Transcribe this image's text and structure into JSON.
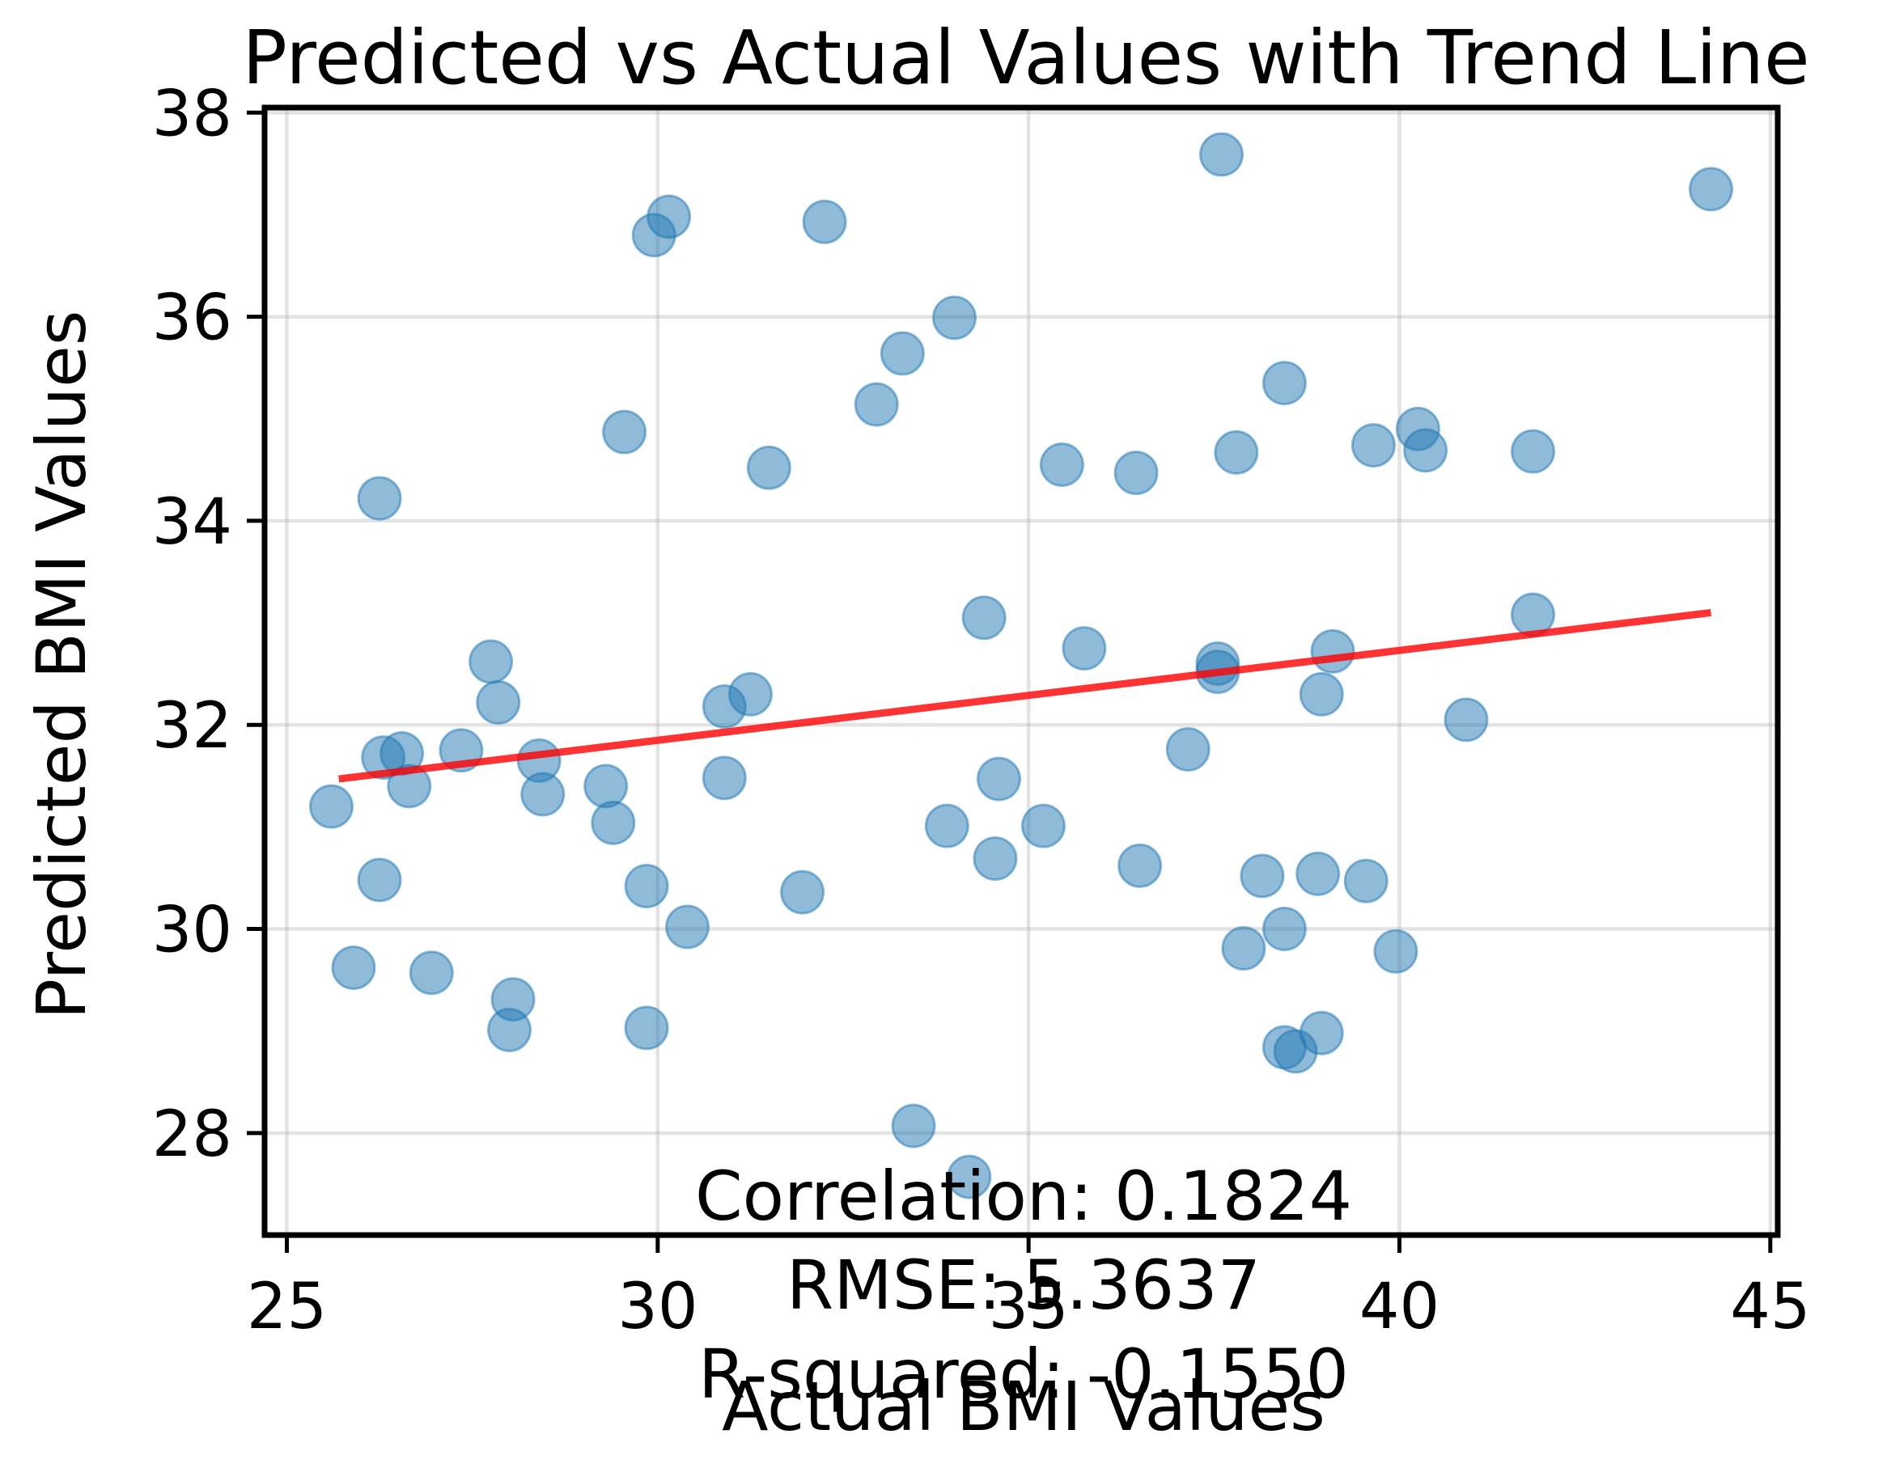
{
  "chart_data": {
    "type": "scatter",
    "title": "Predicted vs Actual Values with Trend Line",
    "xlabel": "Actual BMI Values",
    "ylabel": "Predicted BMI Values",
    "xlim": [
      24.7,
      45.1
    ],
    "ylim": [
      27.0,
      38.05
    ],
    "xticks": [
      25,
      30,
      35,
      40,
      45
    ],
    "yticks": [
      28,
      30,
      32,
      34,
      36,
      38
    ],
    "grid": true,
    "point_color": "#1f77b4",
    "trend_color": "#ff0000",
    "trend_line": {
      "x": [
        25.7,
        44.2
      ],
      "y": [
        31.47,
        33.1
      ]
    },
    "points": [
      {
        "x": 25.6,
        "y": 31.2
      },
      {
        "x": 25.9,
        "y": 29.62
      },
      {
        "x": 26.25,
        "y": 34.22
      },
      {
        "x": 26.25,
        "y": 30.48
      },
      {
        "x": 26.3,
        "y": 31.68
      },
      {
        "x": 26.55,
        "y": 31.72
      },
      {
        "x": 26.65,
        "y": 31.4
      },
      {
        "x": 26.95,
        "y": 29.57
      },
      {
        "x": 27.35,
        "y": 31.75
      },
      {
        "x": 27.75,
        "y": 32.62
      },
      {
        "x": 27.85,
        "y": 32.22
      },
      {
        "x": 28.05,
        "y": 29.31
      },
      {
        "x": 28.0,
        "y": 29.01
      },
      {
        "x": 28.4,
        "y": 31.65
      },
      {
        "x": 28.45,
        "y": 31.32
      },
      {
        "x": 29.3,
        "y": 31.4
      },
      {
        "x": 29.4,
        "y": 31.04
      },
      {
        "x": 29.55,
        "y": 34.87
      },
      {
        "x": 29.85,
        "y": 30.42
      },
      {
        "x": 29.85,
        "y": 29.03
      },
      {
        "x": 29.95,
        "y": 36.8
      },
      {
        "x": 30.15,
        "y": 36.98
      },
      {
        "x": 30.4,
        "y": 30.02
      },
      {
        "x": 30.9,
        "y": 32.18
      },
      {
        "x": 30.9,
        "y": 31.48
      },
      {
        "x": 31.25,
        "y": 32.3
      },
      {
        "x": 31.5,
        "y": 34.52
      },
      {
        "x": 31.95,
        "y": 30.36
      },
      {
        "x": 32.25,
        "y": 36.93
      },
      {
        "x": 32.95,
        "y": 35.14
      },
      {
        "x": 33.3,
        "y": 35.64
      },
      {
        "x": 33.45,
        "y": 28.07
      },
      {
        "x": 33.9,
        "y": 31.01
      },
      {
        "x": 34.0,
        "y": 35.99
      },
      {
        "x": 34.2,
        "y": 27.57
      },
      {
        "x": 34.4,
        "y": 33.05
      },
      {
        "x": 34.55,
        "y": 30.69
      },
      {
        "x": 34.6,
        "y": 31.47
      },
      {
        "x": 35.2,
        "y": 31.01
      },
      {
        "x": 35.45,
        "y": 34.55
      },
      {
        "x": 35.75,
        "y": 32.75
      },
      {
        "x": 36.45,
        "y": 34.47
      },
      {
        "x": 36.5,
        "y": 30.62
      },
      {
        "x": 37.15,
        "y": 31.76
      },
      {
        "x": 37.55,
        "y": 32.6
      },
      {
        "x": 37.55,
        "y": 32.52
      },
      {
        "x": 37.6,
        "y": 37.59
      },
      {
        "x": 37.8,
        "y": 34.67
      },
      {
        "x": 37.9,
        "y": 29.81
      },
      {
        "x": 38.15,
        "y": 30.52
      },
      {
        "x": 38.45,
        "y": 35.35
      },
      {
        "x": 38.45,
        "y": 30.0
      },
      {
        "x": 38.45,
        "y": 28.84
      },
      {
        "x": 38.6,
        "y": 28.8
      },
      {
        "x": 38.95,
        "y": 28.98
      },
      {
        "x": 38.9,
        "y": 30.54
      },
      {
        "x": 38.95,
        "y": 32.3
      },
      {
        "x": 39.1,
        "y": 32.72
      },
      {
        "x": 39.55,
        "y": 30.47
      },
      {
        "x": 39.65,
        "y": 34.74
      },
      {
        "x": 39.95,
        "y": 29.78
      },
      {
        "x": 40.25,
        "y": 34.9
      },
      {
        "x": 40.35,
        "y": 34.69
      },
      {
        "x": 40.9,
        "y": 32.05
      },
      {
        "x": 41.8,
        "y": 34.68
      },
      {
        "x": 41.8,
        "y": 33.08
      },
      {
        "x": 44.2,
        "y": 37.25
      }
    ],
    "annotations": [
      "Correlation: 0.1824",
      "RMSE: 5.3637",
      "R-squared: -0.1550"
    ]
  }
}
